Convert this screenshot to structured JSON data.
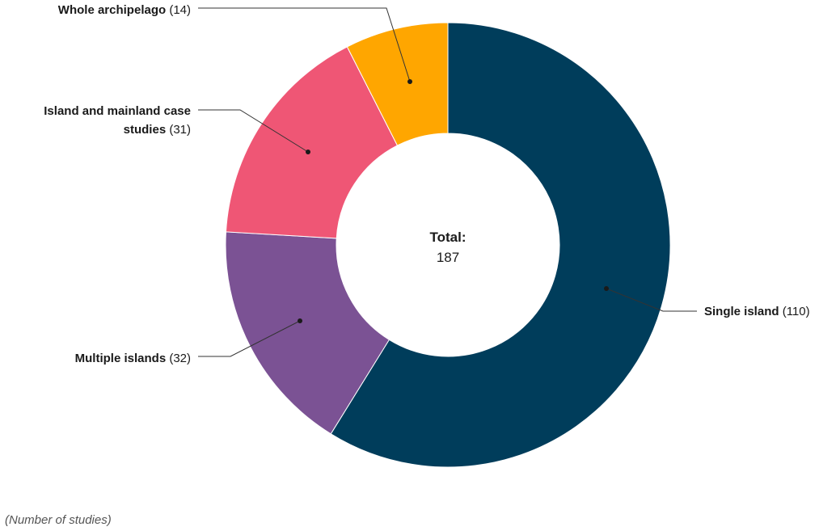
{
  "chart_data": {
    "type": "donut",
    "title": "",
    "unit_note": "(Number of studies)",
    "center_label": {
      "title": "Total:",
      "value": "187"
    },
    "slices": [
      {
        "name": "Single island",
        "value": 110,
        "display": "(110)",
        "color": "#003d5b"
      },
      {
        "name": "Multiple islands",
        "value": 32,
        "display": "(32)",
        "color": "#7b5294"
      },
      {
        "name": "Island and mainland case studies",
        "value": 31,
        "display": "(31)",
        "color": "#ef5675"
      },
      {
        "name": "Whole archipelago",
        "value": 14,
        "display": "(14)",
        "color": "#ffa600"
      }
    ]
  }
}
